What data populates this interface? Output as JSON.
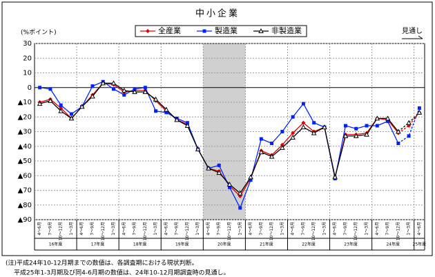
{
  "chart_data": {
    "type": "line",
    "title": "中小企業",
    "y_axis_label": "(%ポイント)",
    "forecast_label": "見通し",
    "categories": [
      "4～6月",
      "7～9月",
      "10～12月",
      "1～3月",
      "4～6月",
      "7～9月",
      "10～12月",
      "1～3月",
      "4～6月",
      "7～9月",
      "10～12月",
      "1～3月",
      "4～6月",
      "7～9月",
      "10～12月",
      "1～3月",
      "4～6月",
      "7～9月",
      "10～12月",
      "1～3月",
      "4～6月",
      "7～9月",
      "10～12月",
      "1～3月",
      "4～6月",
      "7～9月",
      "10～12月",
      "1～3月",
      "4～6月",
      "7～9月",
      "10～12月",
      "1～3月",
      "4～6月",
      "7～9月",
      "10～12月",
      "1～3月",
      "4～6月"
    ],
    "fiscal_years": [
      "16年度",
      "17年度",
      "18年度",
      "19年度",
      "20年度",
      "21年度",
      "22年度",
      "23年度",
      "24年度",
      "25年度"
    ],
    "series": [
      {
        "name": "全産業",
        "color": "#e00000",
        "marker": "diamond",
        "values": [
          -10,
          -8,
          -14,
          -21,
          -13,
          -5,
          3,
          2,
          -3,
          -2,
          -2,
          -9,
          -16,
          -22,
          -25,
          -42,
          -55,
          -57,
          -67,
          -74,
          -62,
          -43,
          -46,
          -39,
          -31,
          -24,
          -30,
          -27,
          -61,
          -32,
          -32,
          -31,
          -21,
          -22,
          -31,
          -26,
          -17
        ]
      },
      {
        "name": "製造業",
        "color": "#0022ff",
        "marker": "square",
        "values": [
          0,
          -1,
          -12,
          -18,
          -13,
          1,
          4,
          -1,
          -5,
          -1,
          0,
          -16,
          -17,
          -21,
          -24,
          -42,
          -55,
          -53,
          -68,
          -82,
          -63,
          -35,
          -38,
          -30,
          -20,
          -11,
          -24,
          -27,
          -62,
          -26,
          -28,
          -26,
          -26,
          -23,
          -38,
          -33,
          -14
        ]
      },
      {
        "name": "非製造業",
        "color": "#000000",
        "marker": "triangle",
        "values": [
          -11,
          -9,
          -16,
          -21,
          -13,
          -6,
          3,
          3,
          -2,
          -3,
          -3,
          -8,
          -15,
          -22,
          -26,
          -42,
          -55,
          -58,
          -66,
          -72,
          -61,
          -44,
          -47,
          -41,
          -34,
          -27,
          -31,
          -27,
          -61,
          -33,
          -33,
          -32,
          -21,
          -21,
          -30,
          -24,
          -17
        ]
      }
    ],
    "dashed_from": 34,
    "shaded": [
      16,
      19
    ],
    "ylim": [
      -90,
      30
    ],
    "yticks": [
      30,
      20,
      10,
      0,
      {
        "value": -10,
        "label": "▲10"
      },
      {
        "value": -20,
        "label": "▲20"
      },
      {
        "value": -30,
        "label": "▲30"
      },
      {
        "value": -40,
        "label": "▲40"
      },
      {
        "value": -50,
        "label": "▲50"
      },
      {
        "value": -60,
        "label": "▲60"
      },
      {
        "value": -70,
        "label": "▲70"
      },
      {
        "value": -80,
        "label": "▲80"
      },
      {
        "value": -90,
        "label": "▲90"
      }
    ],
    "grid": true,
    "notes": [
      "(注)平成24年10-12月期までの数値は、各調査期における現状判断。",
      "平成25年1-3月期及び同4-6月期の数値は、24年10-12月期調査時の見通し。"
    ]
  }
}
